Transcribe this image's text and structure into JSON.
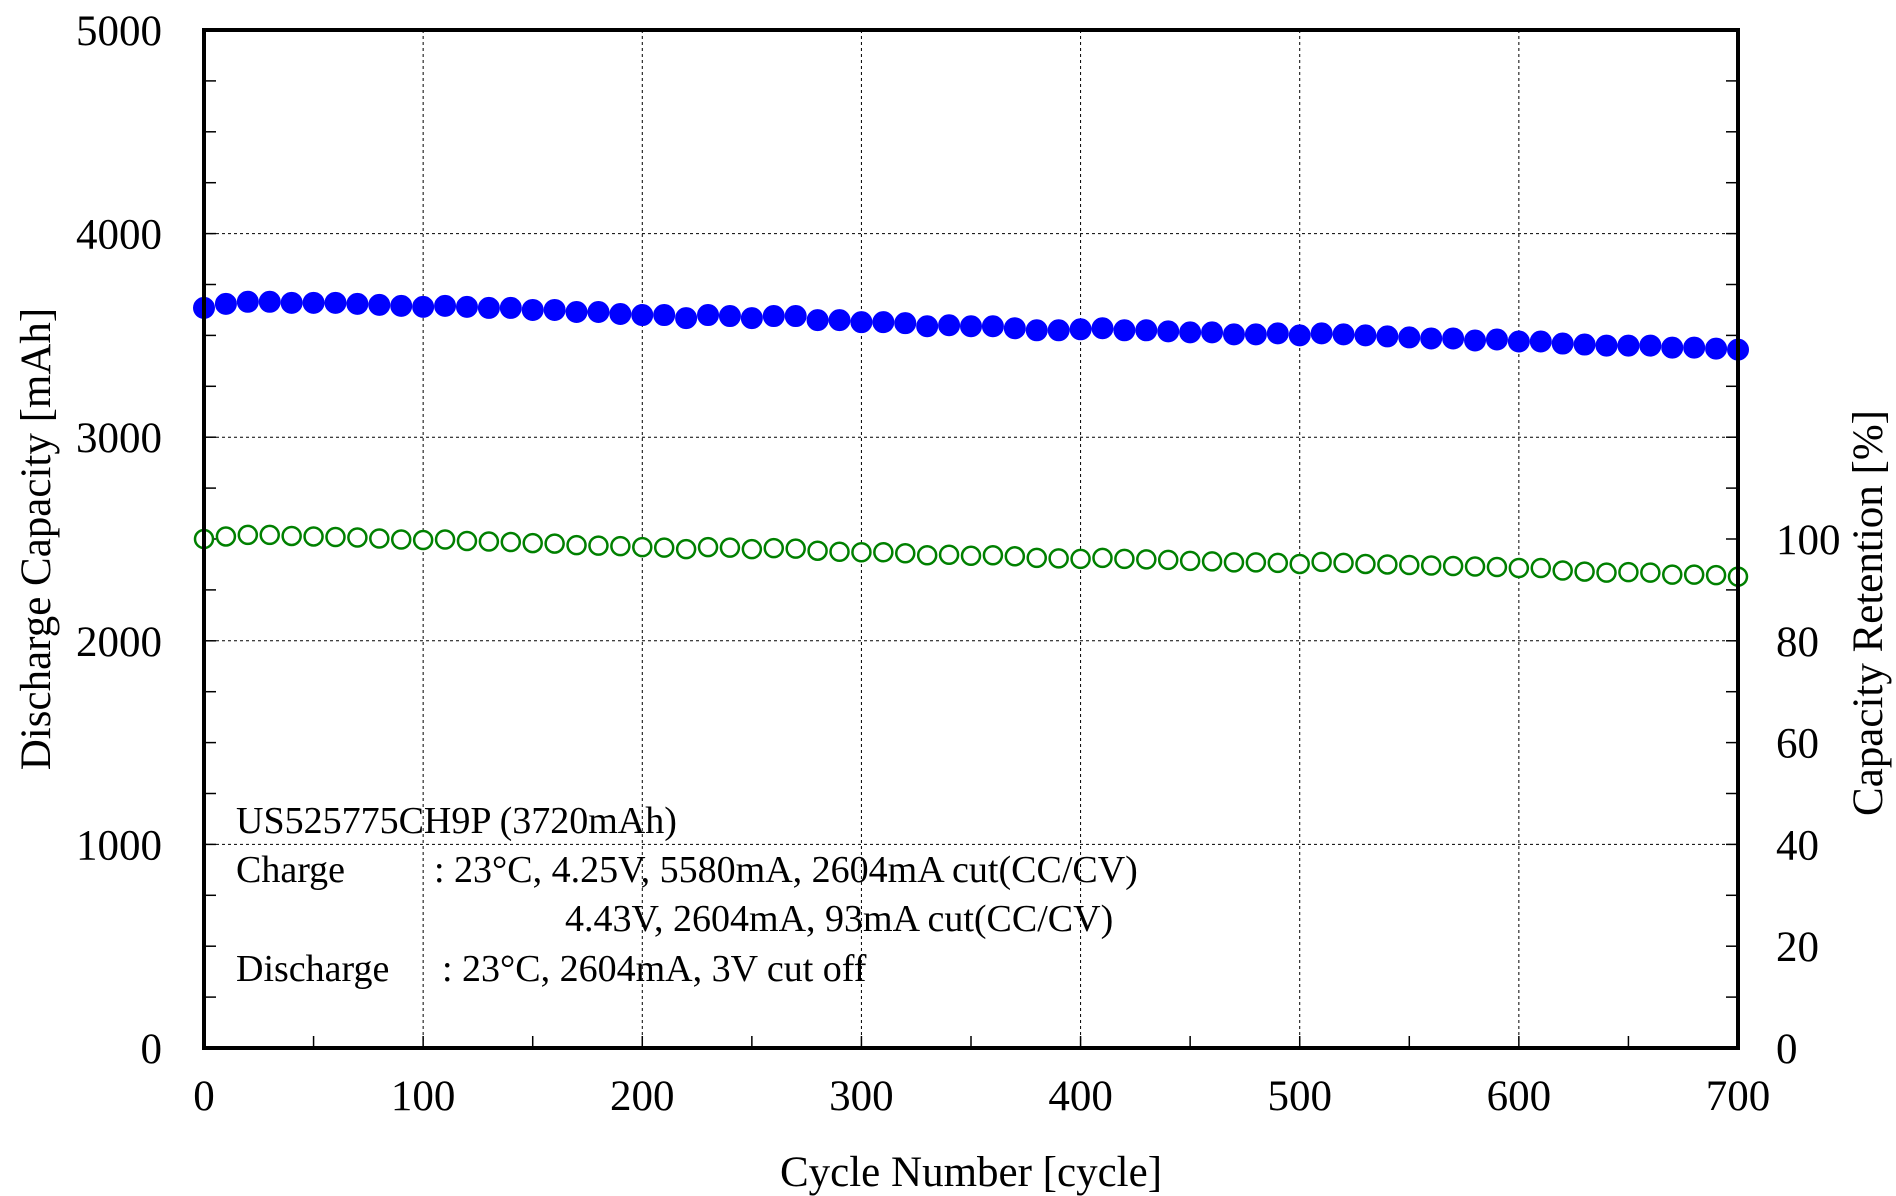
{
  "chart_data": {
    "type": "scatter",
    "xlabel": "Cycle Number [cycle]",
    "ylabel": "Discharge Capacity [mAh]",
    "y2label": "Capacity Retention [%]",
    "xlim": [
      0,
      700
    ],
    "ylim": [
      0,
      5000
    ],
    "y2lim": [
      0,
      200
    ],
    "x_ticks": [
      "0",
      "100",
      "200",
      "300",
      "400",
      "500",
      "600",
      "700"
    ],
    "y_ticks": [
      "0",
      "1000",
      "2000",
      "3000",
      "4000",
      "5000"
    ],
    "y2_ticks": [
      "0",
      "20",
      "40",
      "60",
      "80",
      "100"
    ],
    "grid": true,
    "annotations": [
      "US525775CH9P (3720mAh)",
      "Charge",
      ": 23°C, 4.25V, 5580mA, 2604mA cut(CC/CV)",
      "4.43V, 2604mA, 93mA cut(CC/CV)",
      "Discharge",
      ": 23°C, 2604mA, 3V cut off"
    ],
    "series": [
      {
        "axis": "left",
        "color": "#0000ff",
        "marker": "filled-circle",
        "x": [
          0,
          10,
          20,
          30,
          40,
          50,
          60,
          70,
          80,
          90,
          100,
          110,
          120,
          130,
          140,
          150,
          160,
          170,
          180,
          190,
          200,
          210,
          220,
          230,
          240,
          250,
          260,
          270,
          280,
          290,
          300,
          310,
          320,
          330,
          340,
          350,
          360,
          370,
          380,
          390,
          400,
          410,
          420,
          430,
          440,
          450,
          460,
          470,
          480,
          490,
          500,
          510,
          520,
          530,
          540,
          550,
          560,
          570,
          580,
          590,
          600,
          610,
          620,
          630,
          640,
          650,
          660,
          670,
          680,
          690,
          700
        ],
        "y": [
          3635,
          3655,
          3665,
          3665,
          3660,
          3660,
          3660,
          3655,
          3650,
          3645,
          3640,
          3645,
          3640,
          3635,
          3635,
          3625,
          3625,
          3615,
          3615,
          3605,
          3600,
          3600,
          3585,
          3600,
          3595,
          3585,
          3595,
          3595,
          3575,
          3575,
          3565,
          3565,
          3560,
          3545,
          3550,
          3545,
          3545,
          3535,
          3525,
          3525,
          3530,
          3535,
          3525,
          3525,
          3520,
          3515,
          3515,
          3505,
          3505,
          3510,
          3500,
          3510,
          3505,
          3500,
          3495,
          3490,
          3485,
          3485,
          3475,
          3480,
          3470,
          3470,
          3460,
          3455,
          3450,
          3450,
          3450,
          3440,
          3440,
          3435,
          3430
        ]
      },
      {
        "axis": "right",
        "color": "#008000",
        "marker": "open-circle",
        "x": [
          0,
          10,
          20,
          30,
          40,
          50,
          60,
          70,
          80,
          90,
          100,
          110,
          120,
          130,
          140,
          150,
          160,
          170,
          180,
          190,
          200,
          210,
          220,
          230,
          240,
          250,
          260,
          270,
          280,
          290,
          300,
          310,
          320,
          330,
          340,
          350,
          360,
          370,
          380,
          390,
          400,
          410,
          420,
          430,
          440,
          450,
          460,
          470,
          480,
          490,
          500,
          510,
          520,
          530,
          540,
          550,
          560,
          570,
          580,
          590,
          600,
          610,
          620,
          630,
          640,
          650,
          660,
          670,
          680,
          690,
          700
        ],
        "y": [
          100,
          100.5,
          100.8,
          100.8,
          100.6,
          100.5,
          100.4,
          100.3,
          100.1,
          99.9,
          99.8,
          99.9,
          99.6,
          99.5,
          99.4,
          99.2,
          99.1,
          98.8,
          98.7,
          98.6,
          98.4,
          98.3,
          98.0,
          98.4,
          98.3,
          98.0,
          98.2,
          98.1,
          97.7,
          97.5,
          97.4,
          97.4,
          97.2,
          96.8,
          96.9,
          96.7,
          96.8,
          96.6,
          96.3,
          96.2,
          96.1,
          96.3,
          96.1,
          96.0,
          95.9,
          95.7,
          95.6,
          95.4,
          95.4,
          95.3,
          95.1,
          95.5,
          95.3,
          95.1,
          95.0,
          94.9,
          94.8,
          94.7,
          94.6,
          94.5,
          94.3,
          94.3,
          93.8,
          93.6,
          93.4,
          93.5,
          93.4,
          93.0,
          93.0,
          92.9,
          92.6
        ]
      }
    ]
  }
}
